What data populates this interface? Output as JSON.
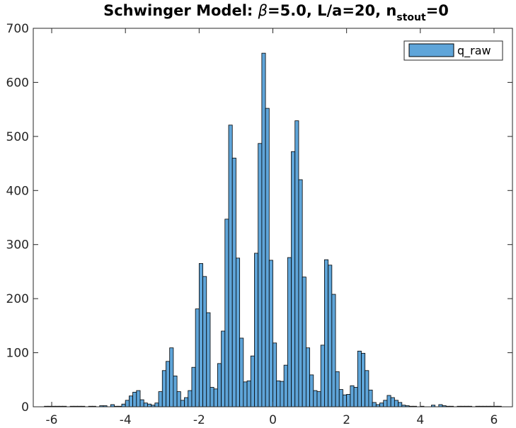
{
  "chart_data": {
    "type": "bar",
    "title": {
      "main": "Schwinger Model: ",
      "beta_symbol": "β",
      "part2": "=5.0, L/a=20, n",
      "subscript": "stout",
      "part3": "=0"
    },
    "xlabel": "",
    "ylabel": "",
    "xlim": [
      -6.5,
      6.5
    ],
    "ylim": [
      0,
      700
    ],
    "xticks": [
      "-6",
      "-4",
      "-2",
      "0",
      "2",
      "4",
      "6"
    ],
    "xtick_values": [
      -6,
      -4,
      -2,
      0,
      2,
      4,
      6
    ],
    "yticks": [
      "0",
      "100",
      "200",
      "300",
      "400",
      "500",
      "600",
      "700"
    ],
    "ytick_values": [
      0,
      100,
      200,
      300,
      400,
      500,
      600,
      700
    ],
    "grid": false,
    "legend": {
      "placement": "top-right",
      "entries": [
        "q_raw"
      ]
    },
    "bin_width": 0.1,
    "series": [
      {
        "name": "q_raw",
        "color": "#5FA5D9",
        "edge_color": "#000000",
        "bins": [
          [
            -6.15,
            1
          ],
          [
            -6.05,
            1
          ],
          [
            -5.95,
            1
          ],
          [
            -5.85,
            1
          ],
          [
            -5.75,
            1
          ],
          [
            -5.65,
            1
          ],
          [
            -5.45,
            1
          ],
          [
            -5.35,
            1
          ],
          [
            -5.25,
            1
          ],
          [
            -5.15,
            1
          ],
          [
            -4.95,
            1
          ],
          [
            -4.85,
            1
          ],
          [
            -4.65,
            2
          ],
          [
            -4.55,
            2
          ],
          [
            -4.35,
            4
          ],
          [
            -4.25,
            1
          ],
          [
            -4.15,
            1
          ],
          [
            -4.05,
            5
          ],
          [
            -3.95,
            12
          ],
          [
            -3.85,
            20
          ],
          [
            -3.75,
            27
          ],
          [
            -3.65,
            30
          ],
          [
            -3.55,
            13
          ],
          [
            -3.45,
            7
          ],
          [
            -3.35,
            5
          ],
          [
            -3.25,
            3
          ],
          [
            -3.15,
            7
          ],
          [
            -3.05,
            28
          ],
          [
            -2.95,
            67
          ],
          [
            -2.85,
            84
          ],
          [
            -2.75,
            109
          ],
          [
            -2.65,
            57
          ],
          [
            -2.55,
            28
          ],
          [
            -2.45,
            12
          ],
          [
            -2.35,
            17
          ],
          [
            -2.25,
            30
          ],
          [
            -2.15,
            73
          ],
          [
            -2.05,
            181
          ],
          [
            -1.95,
            265
          ],
          [
            -1.85,
            241
          ],
          [
            -1.75,
            174
          ],
          [
            -1.65,
            36
          ],
          [
            -1.55,
            33
          ],
          [
            -1.45,
            80
          ],
          [
            -1.35,
            140
          ],
          [
            -1.25,
            347
          ],
          [
            -1.15,
            521
          ],
          [
            -1.05,
            460
          ],
          [
            -0.95,
            275
          ],
          [
            -0.85,
            127
          ],
          [
            -0.75,
            46
          ],
          [
            -0.65,
            48
          ],
          [
            -0.55,
            94
          ],
          [
            -0.45,
            284
          ],
          [
            -0.35,
            487
          ],
          [
            -0.25,
            654
          ],
          [
            -0.15,
            552
          ],
          [
            -0.05,
            271
          ],
          [
            0.05,
            118
          ],
          [
            0.15,
            48
          ],
          [
            0.25,
            47
          ],
          [
            0.35,
            77
          ],
          [
            0.45,
            276
          ],
          [
            0.55,
            472
          ],
          [
            0.65,
            529
          ],
          [
            0.75,
            420
          ],
          [
            0.85,
            240
          ],
          [
            0.95,
            109
          ],
          [
            1.05,
            59
          ],
          [
            1.15,
            30
          ],
          [
            1.25,
            28
          ],
          [
            1.35,
            114
          ],
          [
            1.45,
            272
          ],
          [
            1.55,
            262
          ],
          [
            1.65,
            208
          ],
          [
            1.75,
            65
          ],
          [
            1.85,
            32
          ],
          [
            1.95,
            22
          ],
          [
            2.05,
            23
          ],
          [
            2.15,
            39
          ],
          [
            2.25,
            36
          ],
          [
            2.35,
            103
          ],
          [
            2.45,
            99
          ],
          [
            2.55,
            67
          ],
          [
            2.65,
            31
          ],
          [
            2.75,
            8
          ],
          [
            2.85,
            4
          ],
          [
            2.95,
            7
          ],
          [
            3.05,
            12
          ],
          [
            3.15,
            21
          ],
          [
            3.25,
            17
          ],
          [
            3.35,
            12
          ],
          [
            3.45,
            8
          ],
          [
            3.55,
            3
          ],
          [
            3.65,
            2
          ],
          [
            3.75,
            1
          ],
          [
            3.85,
            1
          ],
          [
            4.05,
            1
          ],
          [
            4.35,
            3
          ],
          [
            4.55,
            4
          ],
          [
            4.65,
            2
          ],
          [
            4.75,
            1
          ],
          [
            4.85,
            1
          ],
          [
            5.05,
            1
          ],
          [
            5.15,
            1
          ],
          [
            5.25,
            1
          ],
          [
            5.35,
            1
          ],
          [
            5.55,
            1
          ],
          [
            5.65,
            1
          ],
          [
            5.75,
            1
          ],
          [
            5.85,
            1
          ],
          [
            5.95,
            1
          ],
          [
            6.05,
            1
          ],
          [
            6.15,
            1
          ]
        ]
      }
    ]
  }
}
